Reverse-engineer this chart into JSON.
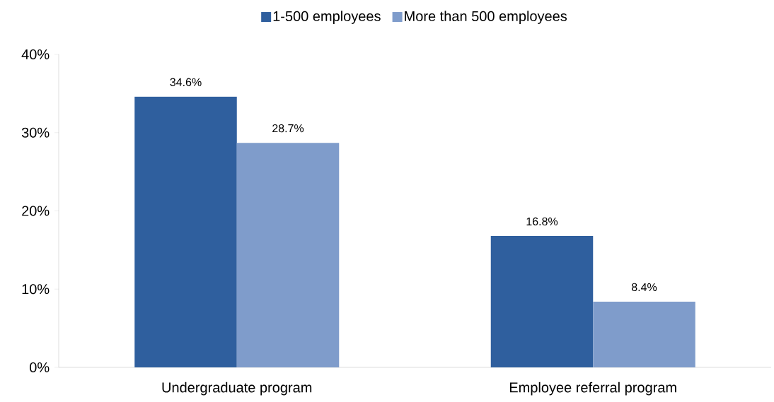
{
  "chart_data": {
    "type": "bar",
    "categories": [
      "Undergraduate program",
      "Employee referral program"
    ],
    "series": [
      {
        "name": "1-500 employees",
        "color": "#2f5f9e",
        "values": [
          34.6,
          16.8
        ],
        "value_labels": [
          "34.6%",
          "16.8%"
        ]
      },
      {
        "name": "More than 500 employees",
        "color": "#7f9ccb",
        "values": [
          28.7,
          8.4
        ],
        "value_labels": [
          "28.7%",
          "8.4%"
        ]
      }
    ],
    "ylim": [
      0,
      40
    ],
    "yticks": [
      {
        "value": 0,
        "label": "0%"
      },
      {
        "value": 10,
        "label": "10%"
      },
      {
        "value": 20,
        "label": "20%"
      },
      {
        "value": 30,
        "label": "30%"
      },
      {
        "value": 40,
        "label": "40%"
      }
    ],
    "legend": "top",
    "grid": false
  }
}
